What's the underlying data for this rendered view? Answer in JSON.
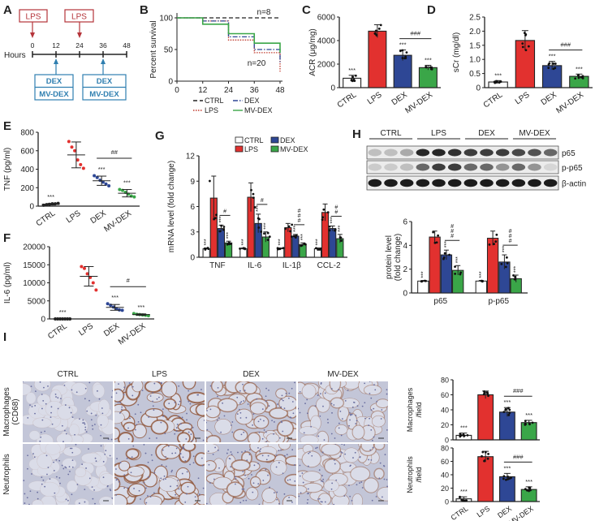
{
  "group_colors": {
    "CTRL": "#ffffff",
    "LPS": "#e2312f",
    "DEX": "#2e4795",
    "MV-DEX": "#3aa648",
    "LPS_box": "#b5343a",
    "DEX_box": "#2f7fb0"
  },
  "panel_letters": [
    "A",
    "B",
    "C",
    "D",
    "E",
    "F",
    "G",
    "H",
    "I"
  ],
  "schedule": {
    "axis_label": "Hours",
    "ticks": [
      "0",
      "12",
      "24",
      "36",
      "48"
    ],
    "lps_label": "LPS",
    "treat_labels": [
      "DEX",
      "MV-DEX"
    ]
  },
  "chart_data": [
    {
      "panel": "B",
      "type": "line",
      "step": true,
      "ylabel": "Percent survival",
      "xticks": [
        0,
        12,
        24,
        36,
        48
      ],
      "yticks": [
        0,
        50,
        100
      ],
      "xlim": [
        0,
        48
      ],
      "ylim": [
        0,
        100
      ],
      "annotations": [
        "n=8",
        "n=20"
      ],
      "series": [
        {
          "name": "CTRL",
          "x": [
            0,
            48
          ],
          "y": [
            100,
            100
          ]
        },
        {
          "name": "LPS",
          "x": [
            0,
            12,
            24,
            36,
            48
          ],
          "y": [
            100,
            95,
            65,
            45,
            15
          ]
        },
        {
          "name": "DEX",
          "x": [
            0,
            12,
            24,
            36,
            48
          ],
          "y": [
            100,
            95,
            70,
            50,
            30
          ]
        },
        {
          "name": "MV-DEX",
          "x": [
            0,
            12,
            24,
            36,
            48
          ],
          "y": [
            100,
            90,
            75,
            60,
            45
          ]
        }
      ]
    },
    {
      "panel": "C",
      "type": "bar",
      "ylabel": "ACR (μg/mg)",
      "categories": [
        "CTRL",
        "LPS",
        "DEX",
        "MV-DEX"
      ],
      "values": [
        800,
        4800,
        2750,
        1700
      ],
      "errors": [
        250,
        550,
        450,
        200
      ],
      "ylim": [
        0,
        6000
      ],
      "yticks": [
        0,
        2000,
        4000,
        6000
      ],
      "stars": [
        "***",
        "",
        "***",
        "***"
      ],
      "bracket": {
        "from": 2,
        "to": 3,
        "label": "###"
      }
    },
    {
      "panel": "D",
      "type": "bar",
      "ylabel": "sCr (mg/dl)",
      "categories": [
        "CTRL",
        "LPS",
        "DEX",
        "MV-DEX"
      ],
      "values": [
        0.2,
        1.67,
        0.78,
        0.4
      ],
      "errors": [
        0.05,
        0.35,
        0.15,
        0.08
      ],
      "ylim": [
        0,
        2.5
      ],
      "yticks": [
        "0",
        "0.5",
        "1.0",
        "1.5",
        "2.0",
        "2.5"
      ],
      "stars": [
        "***",
        "",
        "***",
        "***"
      ],
      "bracket": {
        "from": 2,
        "to": 3,
        "label": "###"
      }
    },
    {
      "panel": "E",
      "type": "scatter",
      "ylabel": "TNF (pg/ml)",
      "categories": [
        "CTRL",
        "LPS",
        "DEX",
        "MV-DEX"
      ],
      "means": [
        20,
        555,
        275,
        140
      ],
      "sd": [
        8,
        140,
        50,
        40
      ],
      "points": [
        [
          10,
          15,
          20,
          25,
          25,
          30
        ],
        [
          700,
          640,
          600,
          500,
          450,
          410
        ],
        [
          330,
          310,
          280,
          260,
          240,
          220
        ],
        [
          180,
          170,
          150,
          130,
          110,
          100
        ]
      ],
      "ylim": [
        0,
        800
      ],
      "yticks": [
        0,
        200,
        400,
        600,
        800
      ],
      "stars": [
        "***",
        "",
        "***",
        "***"
      ],
      "bracket": {
        "from": 2,
        "to": 3,
        "label": "##"
      }
    },
    {
      "panel": "F",
      "type": "scatter",
      "ylabel": "IL-6 (pg/ml)",
      "categories": [
        "CTRL",
        "LPS",
        "DEX",
        "MV-DEX"
      ],
      "means": [
        0,
        11800,
        3200,
        1200
      ],
      "sd": [
        50,
        2700,
        800,
        200
      ],
      "points": [
        [
          0,
          0,
          0,
          0,
          0,
          0,
          0
        ],
        [
          14500,
          14000,
          12500,
          11500,
          10000,
          8000
        ],
        [
          4200,
          3800,
          3300,
          2800,
          2500,
          2400
        ],
        [
          1500,
          1300,
          1200,
          1100,
          1000,
          900
        ]
      ],
      "ylim": [
        0,
        20000
      ],
      "yticks": [
        0,
        5000,
        10000,
        15000,
        20000
      ],
      "stars": [
        "***",
        "",
        "***",
        "***"
      ],
      "bracket": {
        "from": 2,
        "to": 3,
        "label": "#"
      }
    },
    {
      "panel": "G",
      "type": "bar",
      "grouped": true,
      "ylabel": "mRNA level (fold change)",
      "categories": [
        "TNF",
        "IL-6",
        "IL-1β",
        "CCL-2"
      ],
      "ylim": [
        0,
        12
      ],
      "yticks": [
        0,
        3,
        6,
        9,
        12
      ],
      "legend": [
        "CTRL",
        "LPS",
        "DEX",
        "MV-DEX"
      ],
      "series": [
        {
          "name": "CTRL",
          "values": [
            1,
            1,
            1,
            1
          ],
          "errors": [
            0.1,
            0.1,
            0.1,
            0.1
          ]
        },
        {
          "name": "LPS",
          "values": [
            7.0,
            7.1,
            3.5,
            5.3
          ],
          "errors": [
            2.6,
            1.7,
            0.5,
            1.0
          ]
        },
        {
          "name": "DEX",
          "values": [
            3.4,
            4.0,
            2.5,
            3.4
          ],
          "errors": [
            0.4,
            1.1,
            0.2,
            0.3
          ]
        },
        {
          "name": "MV-DEX",
          "values": [
            1.7,
            2.4,
            1.5,
            2.2
          ],
          "errors": [
            0.2,
            0.6,
            0.2,
            0.5
          ]
        }
      ],
      "stars": [
        "***",
        "",
        "***",
        "***"
      ],
      "hash": [
        "#",
        "#",
        "###",
        "##"
      ]
    },
    {
      "panel": "H",
      "type": "bar",
      "grouped": true,
      "ylabel": [
        "protein level",
        "(fold change)"
      ],
      "categories": [
        "p65",
        "p-p65"
      ],
      "ylim": [
        0,
        6
      ],
      "yticks": [
        0,
        2,
        4,
        6
      ],
      "series": [
        {
          "name": "CTRL",
          "values": [
            1,
            1
          ],
          "errors": [
            0.05,
            0.05
          ]
        },
        {
          "name": "LPS",
          "values": [
            4.7,
            4.6
          ],
          "errors": [
            0.5,
            0.6
          ]
        },
        {
          "name": "DEX",
          "values": [
            3.2,
            2.6
          ],
          "errors": [
            0.4,
            0.6
          ]
        },
        {
          "name": "MV-DEX",
          "values": [
            1.9,
            1.2
          ],
          "errors": [
            0.4,
            0.3
          ]
        }
      ],
      "stars": [
        "***",
        "",
        "***",
        "***"
      ],
      "hash": [
        "###",
        "###"
      ]
    },
    {
      "panel": "I",
      "type": "bar",
      "ylabel": [
        "Macrophages",
        "/field"
      ],
      "categories": [
        "CTRL",
        "LPS",
        "DEX",
        "MV-DEX"
      ],
      "values": [
        6,
        60,
        37,
        23
      ],
      "errors": [
        3,
        5,
        6,
        3
      ],
      "ylim": [
        0,
        80
      ],
      "yticks": [
        0,
        20,
        40,
        60,
        80
      ],
      "stars": [
        "***",
        "",
        "***",
        "***"
      ],
      "bracket": {
        "from": 2,
        "to": 3,
        "label": "###"
      }
    },
    {
      "panel": "I",
      "type": "bar",
      "ylabel": [
        "Neutrophils",
        "/field"
      ],
      "categories": [
        "CTRL",
        "LPS",
        "DEX",
        "MV-DEX"
      ],
      "values": [
        4,
        67,
        37,
        18
      ],
      "errors": [
        3,
        8,
        5,
        4
      ],
      "ylim": [
        0,
        80
      ],
      "yticks": [
        0,
        20,
        40,
        60,
        80
      ],
      "stars": [
        "***",
        "",
        "***",
        "***"
      ],
      "bracket": {
        "from": 2,
        "to": 3,
        "label": "###"
      }
    }
  ],
  "blot": {
    "groups": [
      "CTRL",
      "LPS",
      "DEX",
      "MV-DEX"
    ],
    "rows": [
      {
        "label": "p65",
        "band_intensity": [
          0.2,
          0.2,
          0.3,
          0.9,
          0.9,
          0.85,
          0.8,
          0.8,
          0.8,
          0.75,
          0.7,
          0.6
        ]
      },
      {
        "label": "p-p65",
        "band_intensity": [
          0.15,
          0.15,
          0.2,
          0.6,
          0.8,
          0.8,
          0.6,
          0.6,
          0.4,
          0.6,
          0.4,
          0.1
        ]
      },
      {
        "label": "β-actin",
        "band_intensity": [
          0.95,
          0.95,
          0.95,
          0.95,
          0.95,
          0.95,
          0.95,
          0.95,
          0.95,
          0.95,
          0.95,
          0.95
        ]
      }
    ]
  },
  "histology": {
    "columns": [
      "CTRL",
      "LPS",
      "DEX",
      "MV-DEX"
    ],
    "rows": [
      [
        "Macrophages",
        "(CD68)"
      ],
      [
        "Neutrophils"
      ]
    ]
  }
}
